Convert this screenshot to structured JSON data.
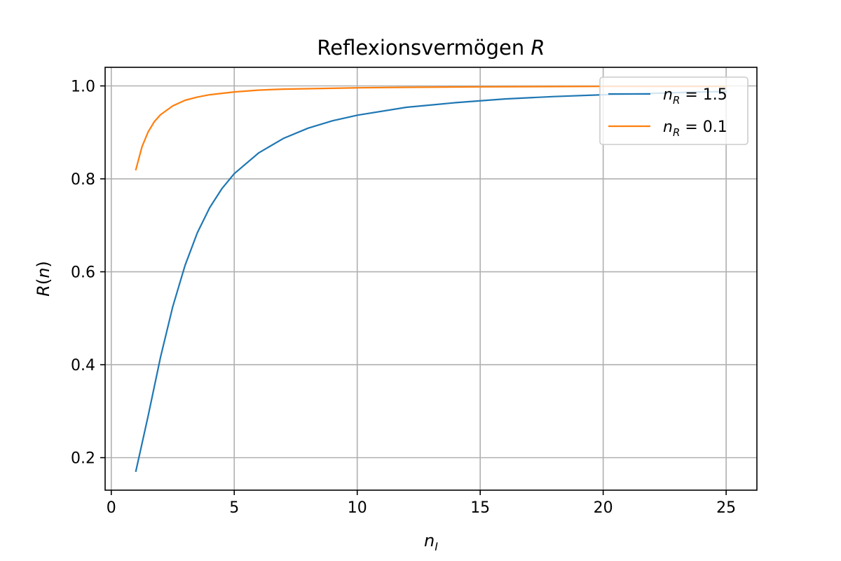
{
  "chart_data": {
    "type": "line",
    "title": {
      "text": "Reflexionsvermögen ",
      "var": "R"
    },
    "xlabel": {
      "base": "n",
      "sub": "I"
    },
    "ylabel": {
      "base": "R",
      "arg": "n"
    },
    "xlim": [
      -0.25,
      26.25
    ],
    "ylim": [
      0.13,
      1.04
    ],
    "xticks": [
      0,
      5,
      10,
      15,
      20,
      25
    ],
    "yticks": [
      0.2,
      0.4,
      0.6,
      0.8,
      1.0
    ],
    "grid": true,
    "legend_position": "top-right",
    "series": [
      {
        "name": {
          "base": "n",
          "sub": "R",
          "eq": " = 1.5"
        },
        "color": "#1f77b4",
        "x": [
          1,
          1.5,
          2,
          2.5,
          3,
          3.5,
          4,
          4.5,
          5,
          6,
          7,
          8,
          9,
          10,
          12,
          14,
          16,
          18,
          20,
          22,
          24,
          25
        ],
        "y": [
          0.171,
          0.29,
          0.416,
          0.525,
          0.614,
          0.684,
          0.738,
          0.779,
          0.811,
          0.856,
          0.887,
          0.909,
          0.925,
          0.937,
          0.954,
          0.964,
          0.972,
          0.977,
          0.981,
          0.984,
          0.987,
          0.988
        ]
      },
      {
        "name": {
          "base": "n",
          "sub": "R",
          "eq": " = 0.1"
        },
        "color": "#ff7f0e",
        "x": [
          1,
          1.25,
          1.5,
          1.75,
          2,
          2.5,
          3,
          3.5,
          4,
          5,
          6,
          7,
          8,
          10,
          12,
          15,
          20,
          25
        ],
        "y": [
          0.82,
          0.869,
          0.901,
          0.923,
          0.938,
          0.957,
          0.969,
          0.976,
          0.981,
          0.987,
          0.991,
          0.993,
          0.994,
          0.996,
          0.997,
          0.998,
          0.999,
          0.999
        ]
      }
    ]
  }
}
